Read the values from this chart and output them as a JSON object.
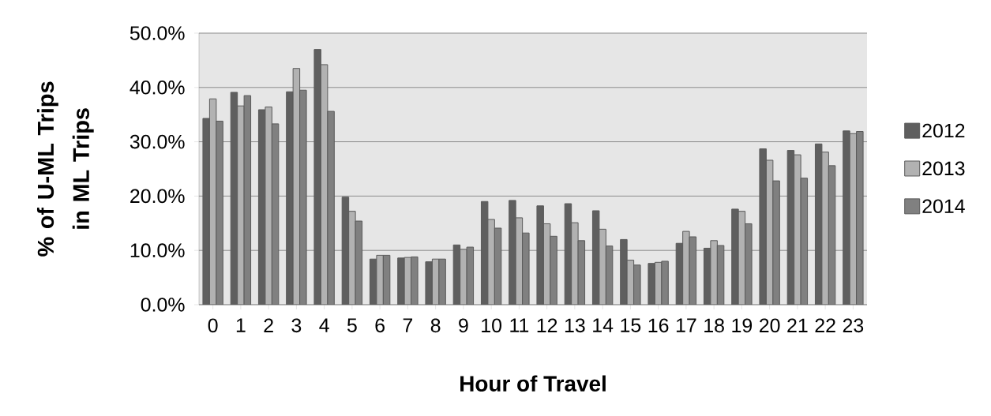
{
  "chart_data": {
    "type": "bar",
    "xlabel": "Hour of Travel",
    "ylabel": "% of U-ML Trips in ML Trips",
    "categories": [
      "0",
      "1",
      "2",
      "3",
      "4",
      "5",
      "6",
      "7",
      "8",
      "9",
      "10",
      "11",
      "12",
      "13",
      "14",
      "15",
      "16",
      "17",
      "18",
      "19",
      "20",
      "21",
      "22",
      "23"
    ],
    "series": [
      {
        "name": "2012",
        "color": "#5f5f5f",
        "values": [
          34.3,
          39.1,
          35.9,
          39.2,
          47.0,
          19.8,
          8.4,
          8.6,
          7.9,
          11.0,
          19.0,
          19.2,
          18.2,
          18.6,
          17.3,
          12.0,
          7.6,
          11.3,
          10.4,
          17.6,
          28.7,
          28.4,
          29.6,
          32.0
        ]
      },
      {
        "name": "2013",
        "color": "#b2b2b2",
        "values": [
          37.9,
          36.6,
          36.4,
          43.5,
          44.2,
          17.2,
          9.1,
          8.7,
          8.4,
          10.2,
          15.7,
          16.0,
          14.9,
          15.1,
          13.9,
          8.2,
          7.8,
          13.5,
          11.8,
          17.2,
          26.6,
          27.6,
          28.1,
          31.5
        ]
      },
      {
        "name": "2014",
        "color": "#808080",
        "values": [
          33.8,
          38.5,
          33.3,
          39.5,
          35.6,
          15.4,
          9.1,
          8.8,
          8.4,
          10.6,
          14.1,
          13.2,
          12.6,
          11.8,
          10.8,
          7.3,
          8.0,
          12.5,
          10.9,
          14.9,
          22.8,
          23.3,
          25.6,
          31.9
        ]
      }
    ],
    "ylim": [
      0,
      50
    ],
    "yticks": [
      {
        "value": 0,
        "label": "0.0%"
      },
      {
        "value": 10,
        "label": "10.0%"
      },
      {
        "value": 20,
        "label": "20.0%"
      },
      {
        "value": 30,
        "label": "30.0%"
      },
      {
        "value": 40,
        "label": "40.0%"
      },
      {
        "value": 50,
        "label": "50.0%"
      }
    ],
    "grid": "y",
    "legend": "right"
  }
}
